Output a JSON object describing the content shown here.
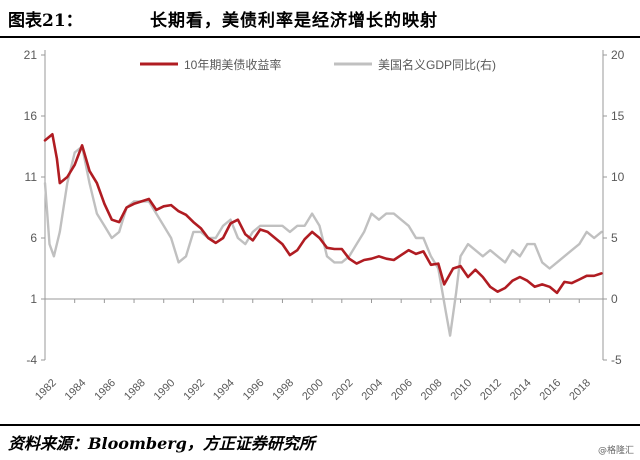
{
  "header": {
    "figure_label": "图表21：",
    "title": "长期看，美债利率是经济增长的映射"
  },
  "footer": {
    "source": "资料来源：Bloomberg，方正证券研究所",
    "watermark": "@格隆汇"
  },
  "colors": {
    "treasury": "#b01c22",
    "gdp": "#c0c0c0",
    "axis": "#999999",
    "text": "#595959"
  },
  "chart_data": {
    "type": "line",
    "title": "",
    "xlabel": "",
    "ylabel": "",
    "legend_position": "top",
    "grid": false,
    "x_tick_labels": [
      "1982",
      "1984",
      "1986",
      "1988",
      "1990",
      "1992",
      "1994",
      "1996",
      "1998",
      "2000",
      "2002",
      "2004",
      "2006",
      "2008",
      "2010",
      "2012",
      "2014",
      "2016",
      "2018"
    ],
    "xlim": [
      1982,
      2019.6
    ],
    "y_left": {
      "ticks": [
        "21",
        "16",
        "11",
        "6",
        "1",
        "-4"
      ],
      "lim": [
        -4,
        21
      ]
    },
    "y_right": {
      "ticks": [
        "20",
        "15",
        "10",
        "5",
        "0",
        "-5"
      ],
      "lim": [
        -5,
        20
      ]
    },
    "series": [
      {
        "name": "10年期美债收益率",
        "axis": "left",
        "points": [
          [
            1982.0,
            14.0
          ],
          [
            1982.5,
            14.5
          ],
          [
            1982.8,
            12.5
          ],
          [
            1983.0,
            10.5
          ],
          [
            1983.5,
            11.0
          ],
          [
            1984.0,
            12.0
          ],
          [
            1984.5,
            13.6
          ],
          [
            1985.0,
            11.5
          ],
          [
            1985.5,
            10.5
          ],
          [
            1986.0,
            8.8
          ],
          [
            1986.5,
            7.5
          ],
          [
            1987.0,
            7.3
          ],
          [
            1987.5,
            8.5
          ],
          [
            1988.0,
            8.8
          ],
          [
            1988.5,
            9.0
          ],
          [
            1989.0,
            9.2
          ],
          [
            1989.5,
            8.3
          ],
          [
            1990.0,
            8.6
          ],
          [
            1990.5,
            8.7
          ],
          [
            1991.0,
            8.2
          ],
          [
            1991.5,
            7.9
          ],
          [
            1992.0,
            7.3
          ],
          [
            1992.5,
            6.8
          ],
          [
            1993.0,
            6.0
          ],
          [
            1993.5,
            5.6
          ],
          [
            1994.0,
            6.0
          ],
          [
            1994.5,
            7.2
          ],
          [
            1995.0,
            7.5
          ],
          [
            1995.5,
            6.3
          ],
          [
            1996.0,
            5.8
          ],
          [
            1996.5,
            6.7
          ],
          [
            1997.0,
            6.5
          ],
          [
            1997.5,
            6.0
          ],
          [
            1998.0,
            5.5
          ],
          [
            1998.5,
            4.6
          ],
          [
            1999.0,
            5.0
          ],
          [
            1999.5,
            5.9
          ],
          [
            2000.0,
            6.5
          ],
          [
            2000.5,
            6.0
          ],
          [
            2001.0,
            5.2
          ],
          [
            2001.5,
            5.1
          ],
          [
            2002.0,
            5.1
          ],
          [
            2002.5,
            4.3
          ],
          [
            2003.0,
            3.9
          ],
          [
            2003.5,
            4.2
          ],
          [
            2004.0,
            4.3
          ],
          [
            2004.5,
            4.5
          ],
          [
            2005.0,
            4.3
          ],
          [
            2005.5,
            4.2
          ],
          [
            2006.0,
            4.6
          ],
          [
            2006.5,
            5.0
          ],
          [
            2007.0,
            4.7
          ],
          [
            2007.5,
            4.9
          ],
          [
            2008.0,
            3.8
          ],
          [
            2008.5,
            3.9
          ],
          [
            2008.9,
            2.2
          ],
          [
            2009.5,
            3.5
          ],
          [
            2010.0,
            3.7
          ],
          [
            2010.5,
            2.8
          ],
          [
            2011.0,
            3.4
          ],
          [
            2011.5,
            2.8
          ],
          [
            2012.0,
            2.0
          ],
          [
            2012.5,
            1.6
          ],
          [
            2013.0,
            1.9
          ],
          [
            2013.5,
            2.5
          ],
          [
            2014.0,
            2.8
          ],
          [
            2014.5,
            2.5
          ],
          [
            2015.0,
            2.0
          ],
          [
            2015.5,
            2.2
          ],
          [
            2016.0,
            2.0
          ],
          [
            2016.5,
            1.5
          ],
          [
            2017.0,
            2.4
          ],
          [
            2017.5,
            2.3
          ],
          [
            2018.0,
            2.6
          ],
          [
            2018.5,
            2.9
          ],
          [
            2019.0,
            2.9
          ],
          [
            2019.5,
            3.1
          ]
        ]
      },
      {
        "name": "美国名义GDP同比(右)",
        "axis": "right",
        "points": [
          [
            1982.0,
            9.5
          ],
          [
            1982.3,
            4.5
          ],
          [
            1982.6,
            3.5
          ],
          [
            1983.0,
            5.5
          ],
          [
            1983.5,
            9.5
          ],
          [
            1984.0,
            12.0
          ],
          [
            1984.5,
            12.5
          ],
          [
            1985.0,
            9.5
          ],
          [
            1985.5,
            7.0
          ],
          [
            1986.0,
            6.0
          ],
          [
            1986.5,
            5.0
          ],
          [
            1987.0,
            5.5
          ],
          [
            1987.5,
            7.5
          ],
          [
            1988.0,
            8.0
          ],
          [
            1988.5,
            8.0
          ],
          [
            1989.0,
            8.0
          ],
          [
            1989.5,
            7.0
          ],
          [
            1990.0,
            6.0
          ],
          [
            1990.5,
            5.0
          ],
          [
            1991.0,
            3.0
          ],
          [
            1991.5,
            3.5
          ],
          [
            1992.0,
            5.5
          ],
          [
            1992.5,
            5.5
          ],
          [
            1993.0,
            5.0
          ],
          [
            1993.5,
            5.0
          ],
          [
            1994.0,
            6.0
          ],
          [
            1994.5,
            6.5
          ],
          [
            1995.0,
            5.0
          ],
          [
            1995.5,
            4.5
          ],
          [
            1996.0,
            5.5
          ],
          [
            1996.5,
            6.0
          ],
          [
            1997.0,
            6.0
          ],
          [
            1997.5,
            6.0
          ],
          [
            1998.0,
            6.0
          ],
          [
            1998.5,
            5.5
          ],
          [
            1999.0,
            6.0
          ],
          [
            1999.5,
            6.0
          ],
          [
            2000.0,
            7.0
          ],
          [
            2000.5,
            6.0
          ],
          [
            2001.0,
            3.5
          ],
          [
            2001.5,
            3.0
          ],
          [
            2002.0,
            3.0
          ],
          [
            2002.5,
            3.5
          ],
          [
            2003.0,
            4.5
          ],
          [
            2003.5,
            5.5
          ],
          [
            2004.0,
            7.0
          ],
          [
            2004.5,
            6.5
          ],
          [
            2005.0,
            7.0
          ],
          [
            2005.5,
            7.0
          ],
          [
            2006.0,
            6.5
          ],
          [
            2006.5,
            6.0
          ],
          [
            2007.0,
            5.0
          ],
          [
            2007.5,
            5.0
          ],
          [
            2008.0,
            3.5
          ],
          [
            2008.5,
            2.5
          ],
          [
            2009.0,
            -1.0
          ],
          [
            2009.3,
            -3.0
          ],
          [
            2009.7,
            0.5
          ],
          [
            2010.0,
            3.5
          ],
          [
            2010.5,
            4.5
          ],
          [
            2011.0,
            4.0
          ],
          [
            2011.5,
            3.5
          ],
          [
            2012.0,
            4.0
          ],
          [
            2012.5,
            3.5
          ],
          [
            2013.0,
            3.0
          ],
          [
            2013.5,
            4.0
          ],
          [
            2014.0,
            3.5
          ],
          [
            2014.5,
            4.5
          ],
          [
            2015.0,
            4.5
          ],
          [
            2015.5,
            3.0
          ],
          [
            2016.0,
            2.5
          ],
          [
            2016.5,
            3.0
          ],
          [
            2017.0,
            3.5
          ],
          [
            2017.5,
            4.0
          ],
          [
            2018.0,
            4.5
          ],
          [
            2018.5,
            5.5
          ],
          [
            2019.0,
            5.0
          ],
          [
            2019.5,
            5.5
          ]
        ]
      }
    ]
  }
}
